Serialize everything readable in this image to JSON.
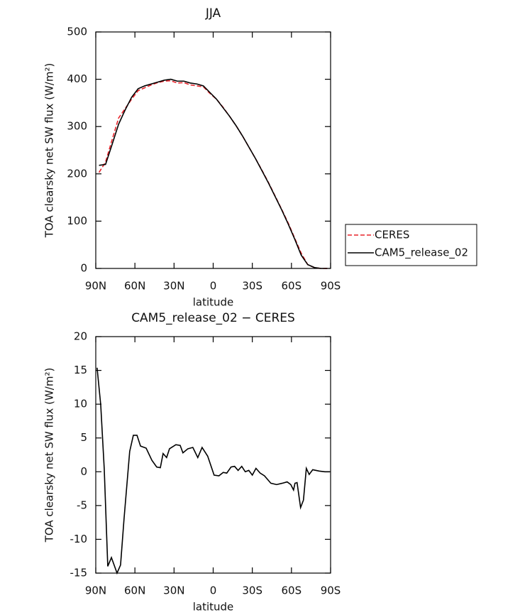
{
  "chart_data": [
    {
      "type": "line",
      "title": "JJA",
      "xlabel": "latitude",
      "ylabel": "TOA clearsky net SW flux (W/m²)",
      "x": [
        87.5,
        82.5,
        77.5,
        72.5,
        67.5,
        62.5,
        57.5,
        52.5,
        47.5,
        42.5,
        37.5,
        32.5,
        27.5,
        22.5,
        17.5,
        12.5,
        7.5,
        2.5,
        -2.5,
        -7.5,
        -12.5,
        -17.5,
        -22.5,
        -27.5,
        -32.5,
        -37.5,
        -42.5,
        -47.5,
        -52.5,
        -57.5,
        -62.5,
        -67.5,
        -72.5,
        -77.5,
        -82.5,
        -87.5
      ],
      "series": [
        {
          "name": "CERES",
          "color": "#e8232a",
          "dash": true,
          "values": [
            203,
            225,
            272,
            318,
            338,
            358,
            376,
            382,
            388,
            393,
            396,
            397,
            392,
            393,
            388,
            386,
            384,
            370,
            358,
            341,
            322,
            302,
            280,
            256,
            232,
            207,
            181,
            153,
            125,
            96,
            64,
            32,
            8,
            2,
            0,
            0
          ]
        },
        {
          "name": "CAM5_release_02",
          "color": "#000000",
          "dash": false,
          "values": [
            218,
            220,
            262,
            305,
            335,
            362,
            380,
            386,
            390,
            394,
            398,
            400,
            396,
            396,
            392,
            390,
            386,
            372,
            358,
            340,
            322,
            302,
            280,
            256,
            232,
            206,
            180,
            152,
            124,
            94,
            62,
            28,
            8,
            2,
            0,
            0
          ]
        }
      ],
      "xlim": [
        90,
        -90
      ],
      "xticks": [
        {
          "value": 90,
          "label": "90N"
        },
        {
          "value": 60,
          "label": "60N"
        },
        {
          "value": 30,
          "label": "30N"
        },
        0,
        {
          "value": -30,
          "label": "30S"
        },
        {
          "value": -60,
          "label": "60S"
        },
        {
          "value": -90,
          "label": "90S"
        }
      ],
      "ylim": [
        0,
        500
      ],
      "yticks": [
        0,
        100,
        200,
        300,
        400,
        500
      ],
      "legend": "right"
    },
    {
      "type": "line",
      "title": "CAM5_release_02 − CERES",
      "xlabel": "latitude",
      "ylabel": "TOA clearsky net SW flux (W/m²)",
      "x": [
        89,
        86.2,
        83.5,
        80.8,
        78,
        73.7,
        71,
        68.3,
        64,
        61.2,
        58.4,
        55.7,
        51.4,
        47,
        43.3,
        40.5,
        38.4,
        35.7,
        33.5,
        28.6,
        25.3,
        23.2,
        19.4,
        15.6,
        11.8,
        8.5,
        4.2,
        -0.7,
        -4.4,
        -7.7,
        -10.4,
        -13.7,
        -16.4,
        -19.1,
        -21.9,
        -24.6,
        -27.3,
        -30,
        -32.8,
        -36,
        -39.3,
        -44.2,
        -48.6,
        -53,
        -56.7,
        -59.5,
        -61.6,
        -62.7,
        -64.3,
        -67,
        -69.2,
        -71.4,
        -73.6,
        -76.3,
        -81.2,
        -85.6,
        -89.4
      ],
      "series": [
        {
          "name": "CAM5_release_02 − CERES",
          "color": "#000000",
          "dash": false,
          "values": [
            15.4,
            9.9,
            0.4,
            -14,
            -12.7,
            -15,
            -13.8,
            -6.9,
            3.0,
            5.4,
            5.4,
            3.8,
            3.5,
            1.7,
            0.7,
            0.6,
            2.7,
            2.1,
            3.4,
            4.0,
            3.9,
            2.8,
            3.4,
            3.6,
            2.1,
            3.6,
            2.3,
            -0.5,
            -0.6,
            -0.1,
            -0.2,
            0.7,
            0.8,
            0.2,
            0.8,
            0.0,
            0.2,
            -0.5,
            0.5,
            -0.2,
            -0.6,
            -1.7,
            -1.9,
            -1.7,
            -1.5,
            -1.9,
            -2.7,
            -1.7,
            -1.6,
            -5.3,
            -4.2,
            0.5,
            -0.4,
            0.3,
            0.1,
            0.0,
            0.0
          ]
        }
      ],
      "xlim": [
        90,
        -90
      ],
      "xticks": [
        {
          "value": 90,
          "label": "90N"
        },
        {
          "value": 60,
          "label": "60N"
        },
        {
          "value": 30,
          "label": "30N"
        },
        0,
        {
          "value": -30,
          "label": "30S"
        },
        {
          "value": -60,
          "label": "60S"
        },
        {
          "value": -90,
          "label": "90S"
        }
      ],
      "ylim": [
        -15,
        20
      ],
      "yticks": [
        -15,
        -10,
        -5,
        0,
        5,
        10,
        15,
        20
      ]
    }
  ]
}
